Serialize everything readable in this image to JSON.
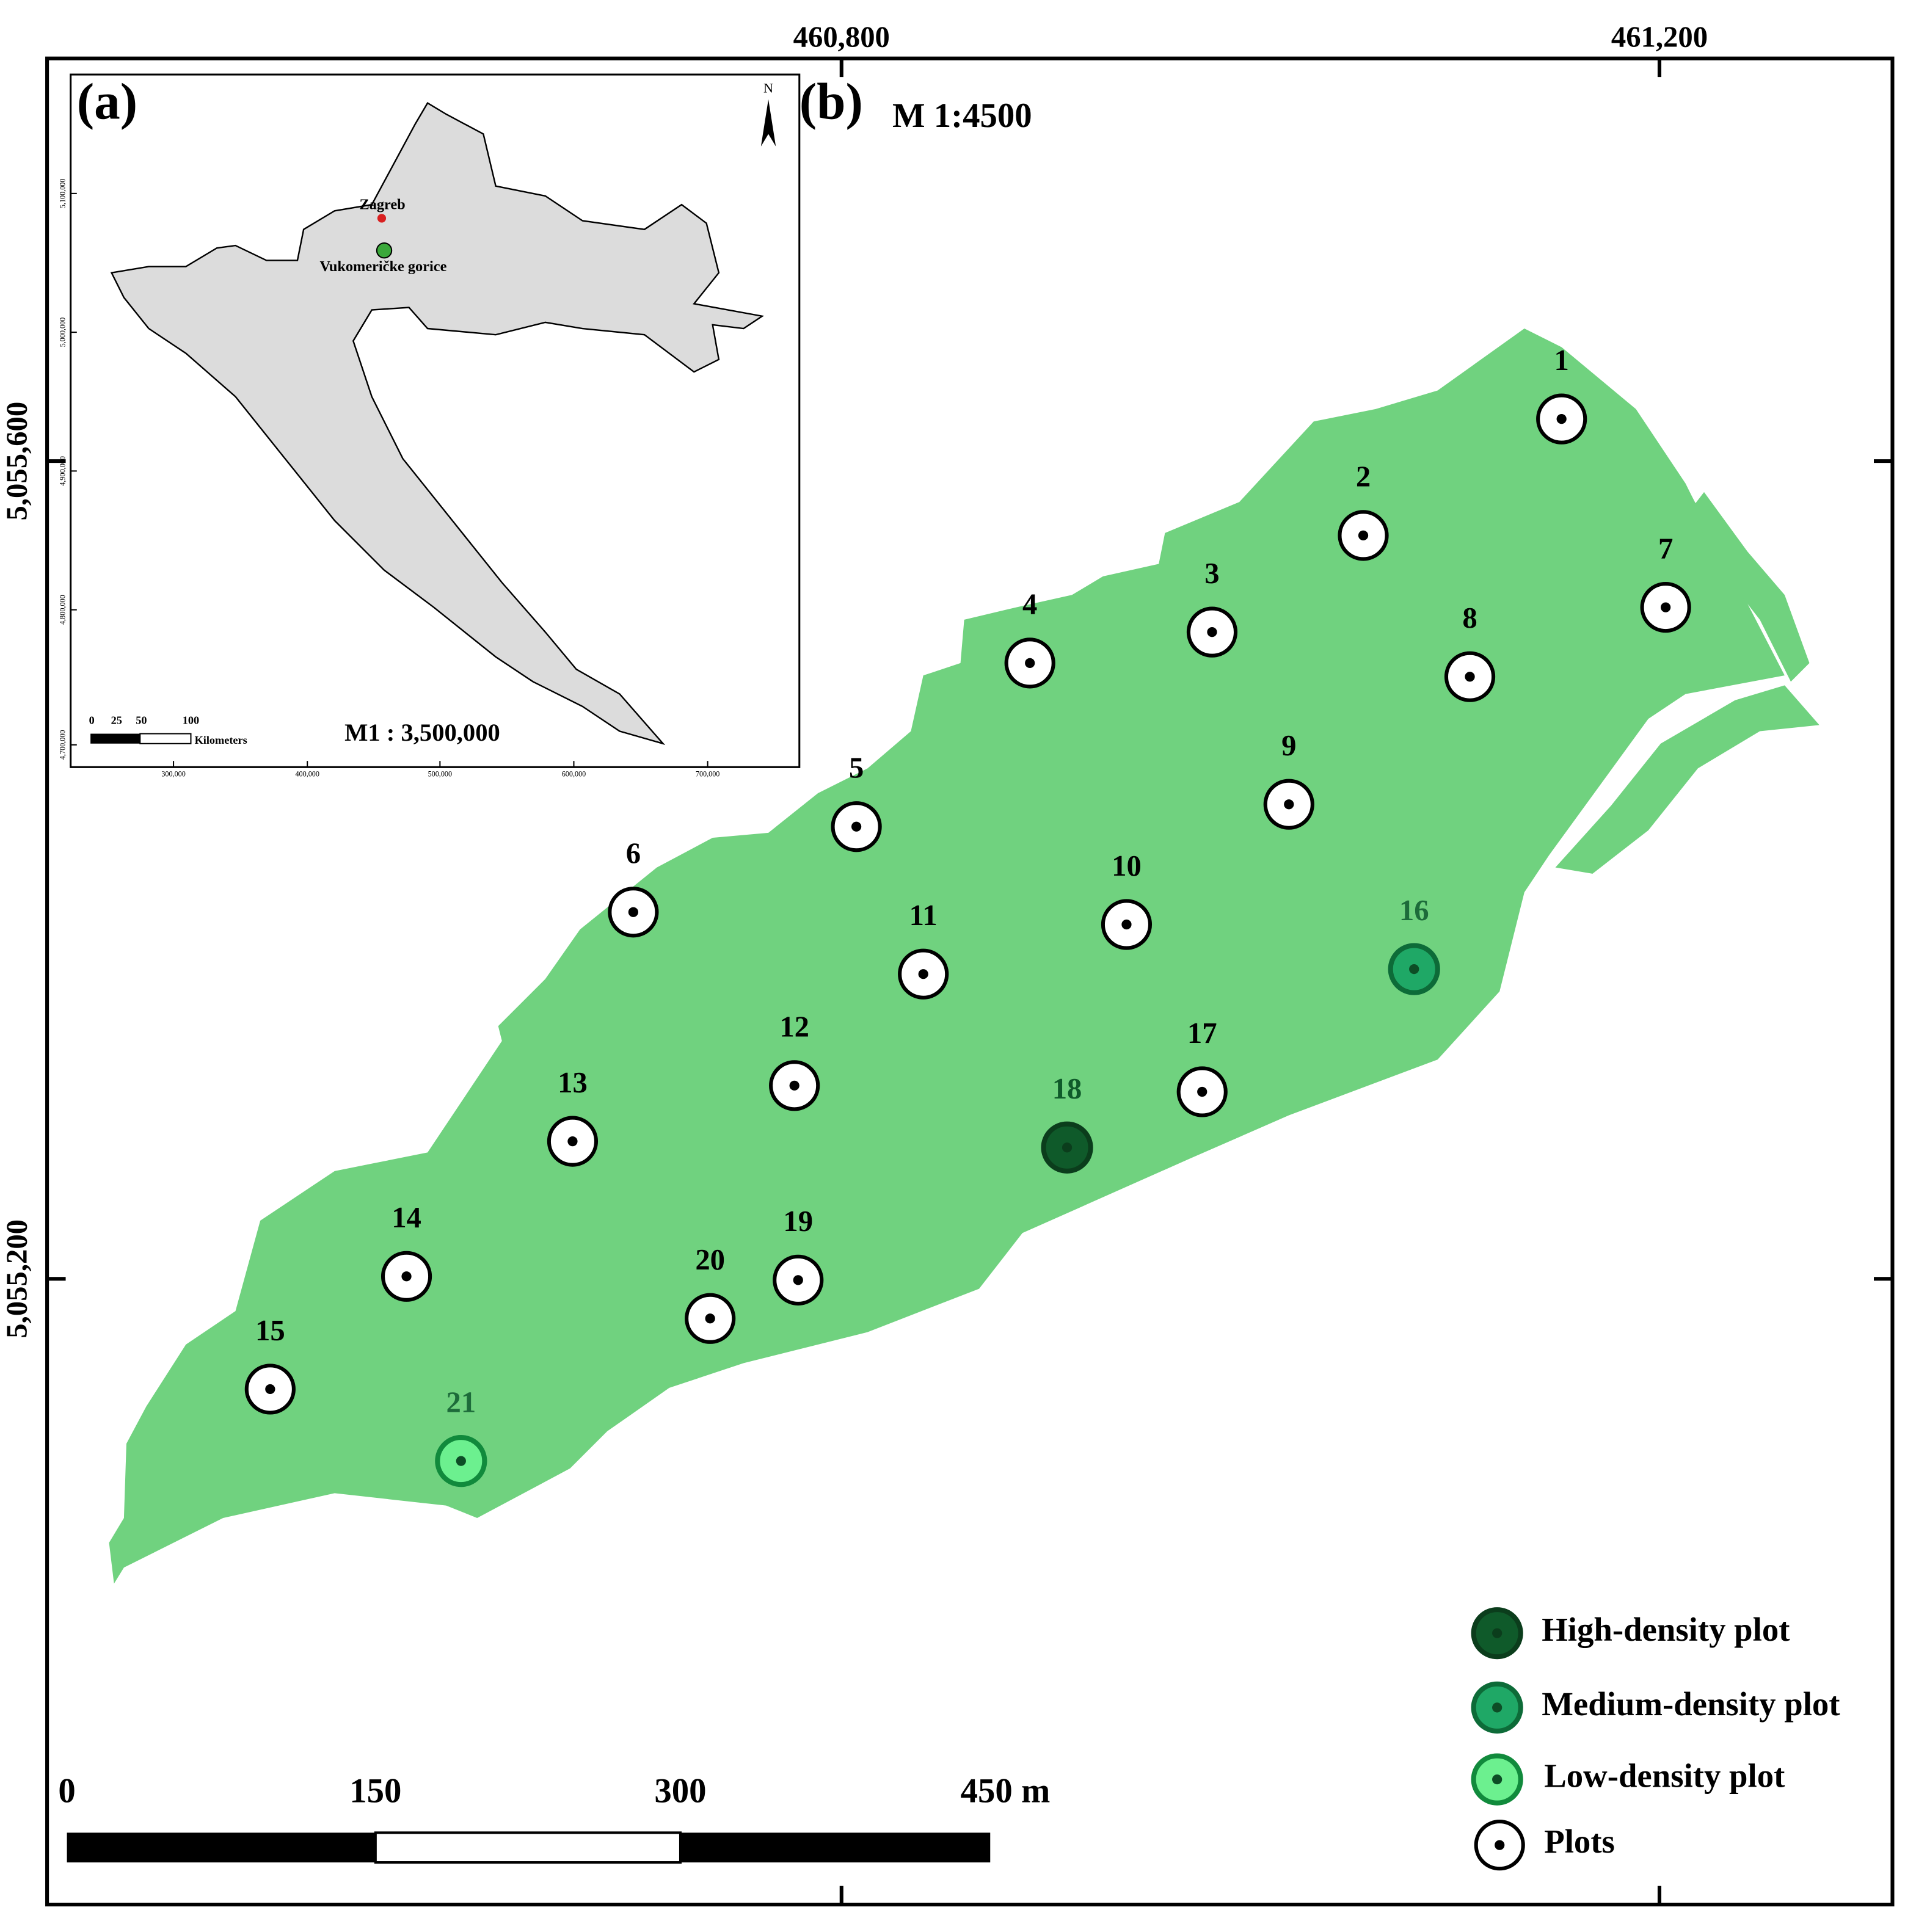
{
  "coordinates": {
    "top": [
      "460,800",
      "461,200"
    ],
    "left": [
      "5,055,600",
      "5,055,200"
    ]
  },
  "inset": {
    "panel_label": "(a)",
    "north": "N",
    "places": [
      "Zagreb",
      "Vukomeričke gorice"
    ],
    "scale_ratio": "M1 : 3,500,000",
    "scale_ticks": [
      "0",
      "25",
      "50",
      "100"
    ],
    "scale_unit": "Kilometers",
    "y_ticks": [
      "5,100,000",
      "5,000,000",
      "4,900,000",
      "4,800,000",
      "4,700,000"
    ],
    "x_ticks": [
      "300,000",
      "400,000",
      "500,000",
      "600,000",
      "700,000"
    ]
  },
  "main": {
    "panel_label": "(b)",
    "scale_ratio": "M 1:4500",
    "plots": [
      "1",
      "2",
      "3",
      "4",
      "5",
      "6",
      "7",
      "8",
      "9",
      "10",
      "11",
      "12",
      "13",
      "14",
      "15",
      "16",
      "17",
      "18",
      "19",
      "20",
      "21"
    ],
    "scale_ticks": [
      "0",
      "150",
      "300",
      "450 m"
    ]
  },
  "legend": [
    "High-density plot",
    "Medium-density plot",
    "Low-density plot",
    "Plots"
  ]
}
